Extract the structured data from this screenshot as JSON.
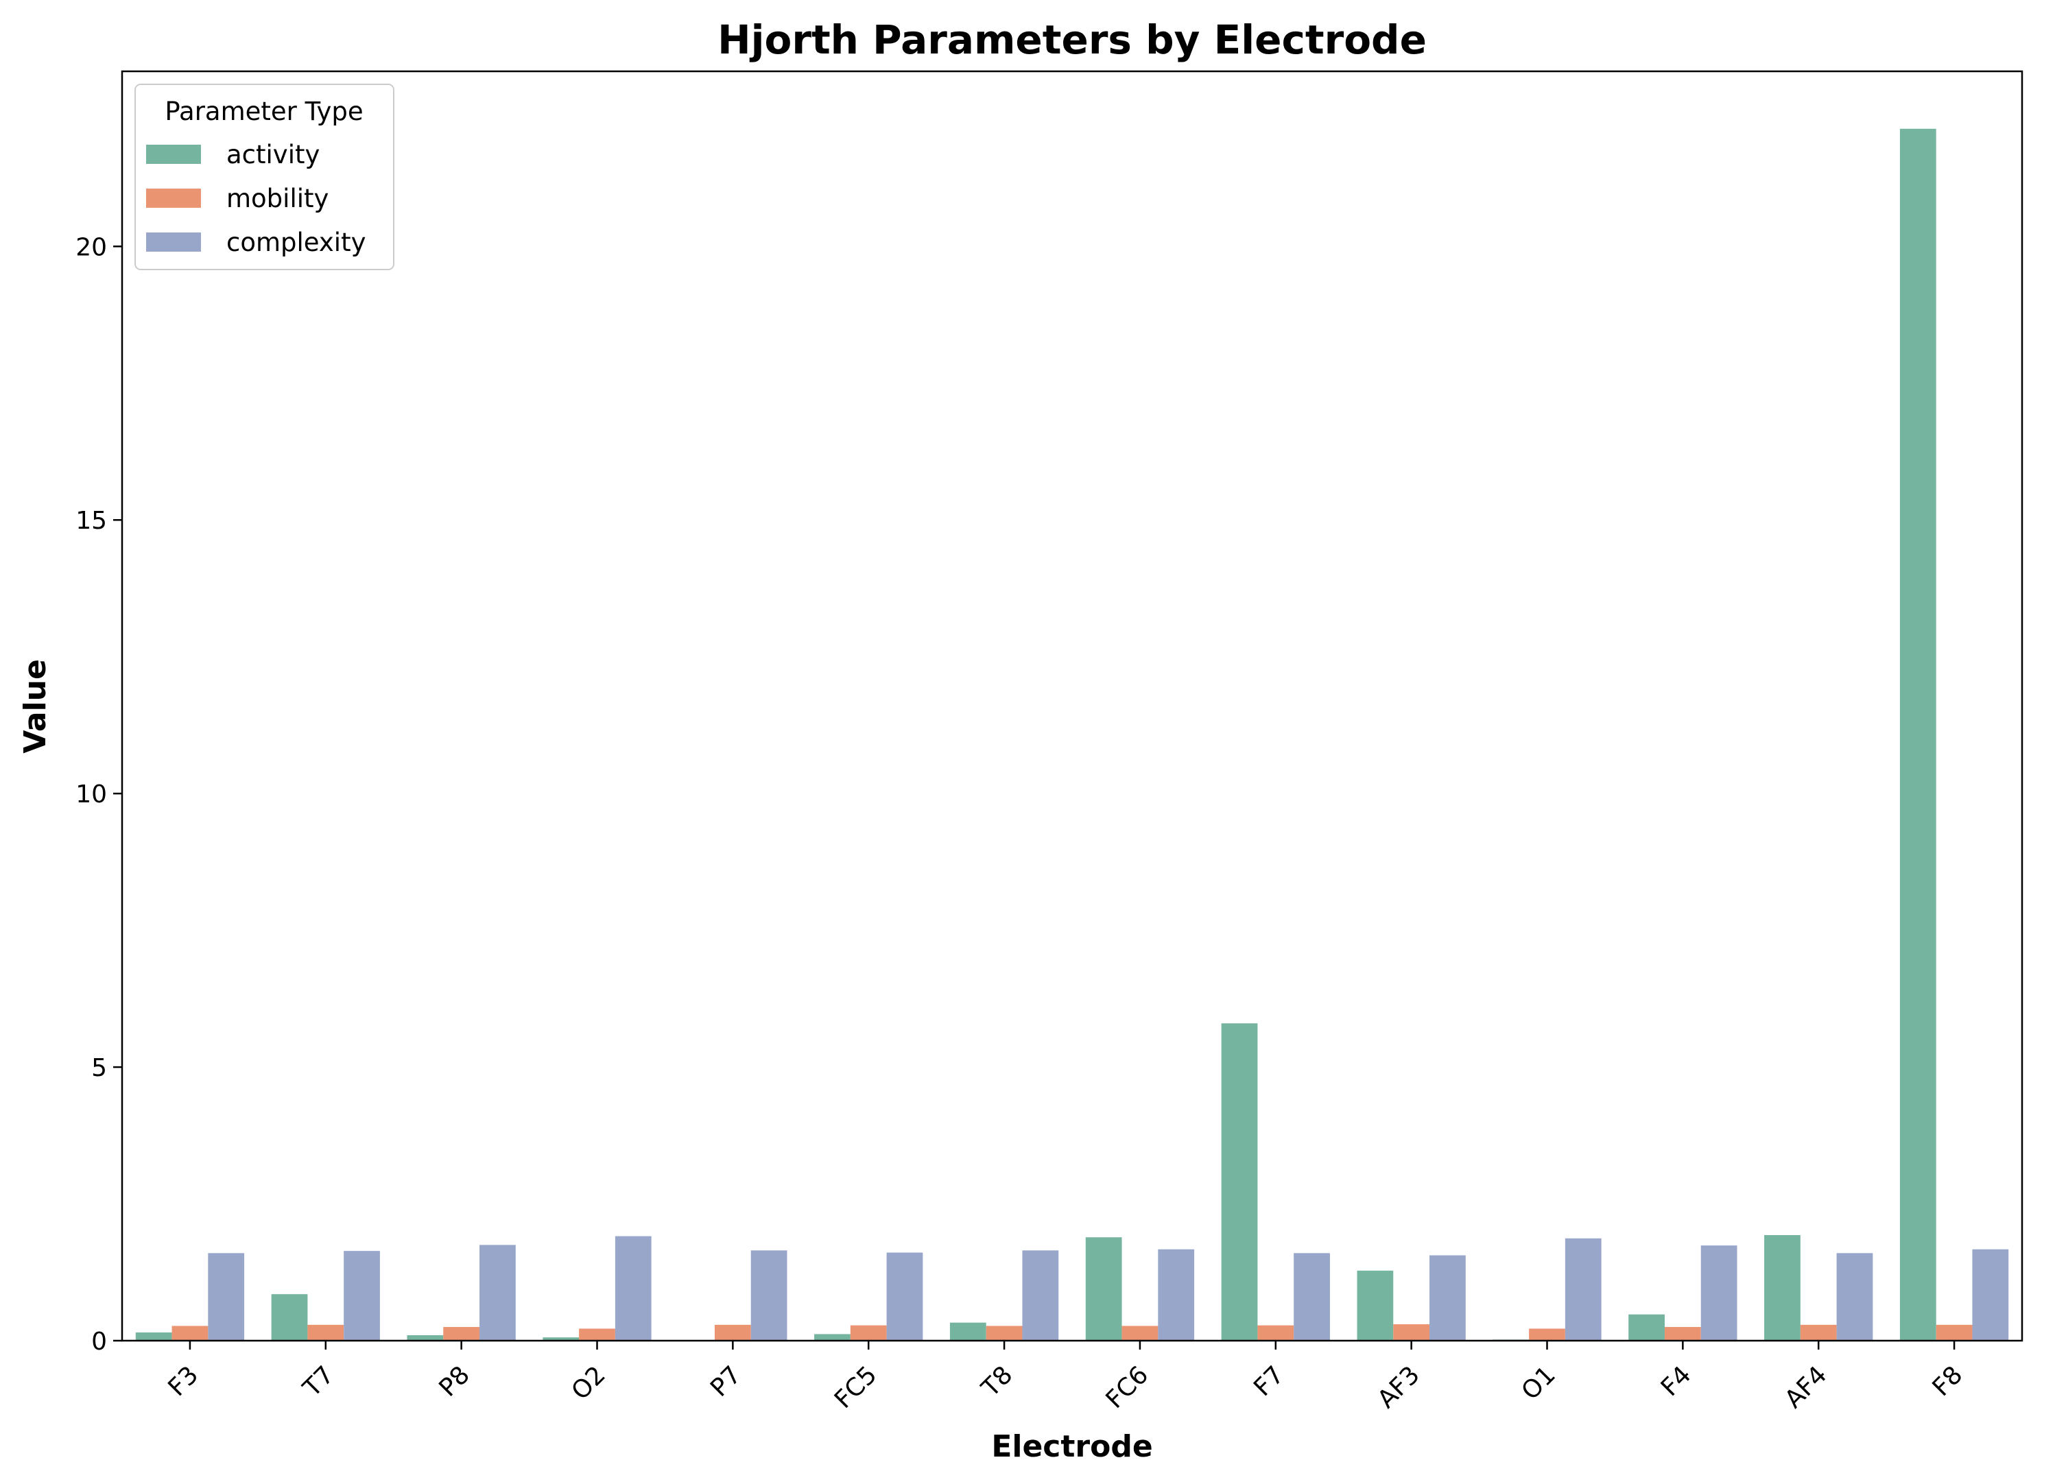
{
  "chart_data": {
    "type": "bar",
    "title": "Hjorth Parameters by Electrode",
    "xlabel": "Electrode",
    "ylabel": "Value",
    "ylim": [
      0,
      23.2
    ],
    "yticks": [
      0,
      5,
      10,
      15,
      20
    ],
    "grid": false,
    "legend_placement": "top-left",
    "legend_title": "Parameter Type",
    "categories": [
      "F3",
      "T7",
      "P8",
      "O2",
      "P7",
      "FC5",
      "T8",
      "FC6",
      "F7",
      "AF3",
      "O1",
      "F4",
      "AF4",
      "F8"
    ],
    "series": [
      {
        "name": "activity",
        "color": "#75b59f",
        "values": [
          0.15,
          0.85,
          0.1,
          0.06,
          0.0,
          0.12,
          0.33,
          1.89,
          5.8,
          1.28,
          0.02,
          0.48,
          1.93,
          22.15
        ]
      },
      {
        "name": "mobility",
        "color": "#eb9471",
        "values": [
          0.27,
          0.29,
          0.25,
          0.22,
          0.29,
          0.28,
          0.27,
          0.27,
          0.28,
          0.3,
          0.22,
          0.25,
          0.29,
          0.29
        ]
      },
      {
        "name": "complexity",
        "color": "#98a6c9",
        "values": [
          1.6,
          1.64,
          1.75,
          1.91,
          1.65,
          1.61,
          1.65,
          1.67,
          1.6,
          1.56,
          1.87,
          1.74,
          1.6,
          1.67
        ]
      }
    ]
  }
}
